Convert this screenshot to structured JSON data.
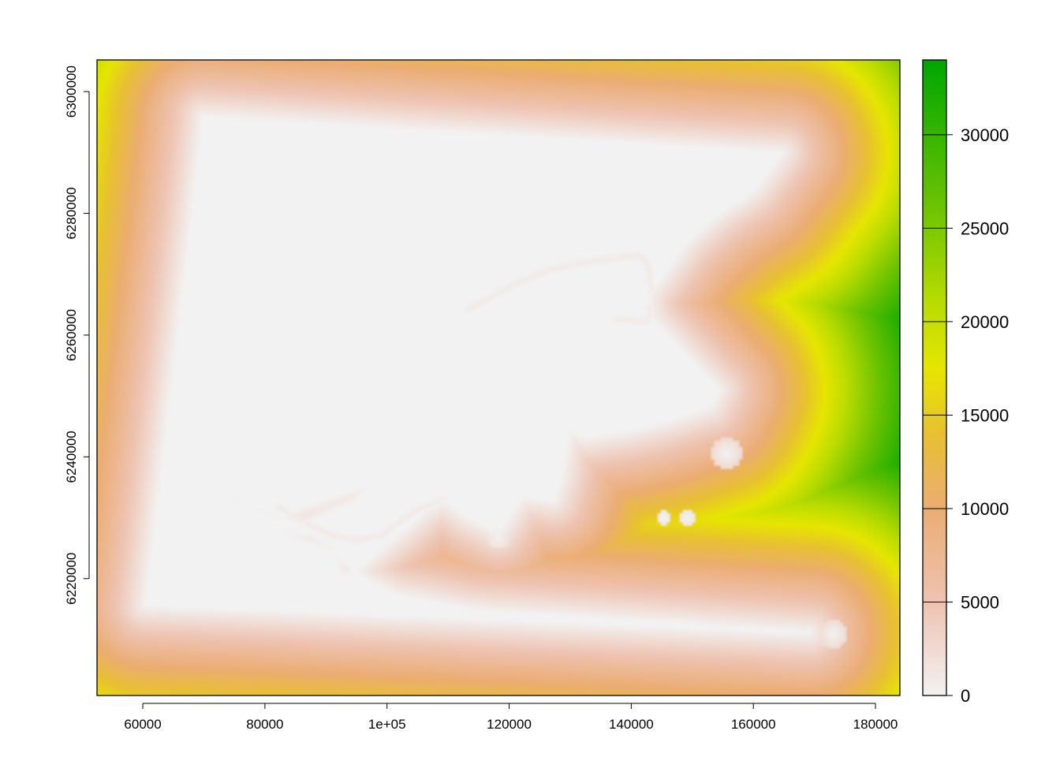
{
  "chart_data": {
    "type": "heatmap",
    "title": "",
    "xlabel": "",
    "ylabel": "",
    "xlim": [
      52500,
      184000
    ],
    "ylim": [
      6200800,
      6305200
    ],
    "x_ticks": [
      60000,
      80000,
      100000,
      120000,
      140000,
      160000,
      180000
    ],
    "x_tick_labels": [
      "60000",
      "80000",
      "1e+05",
      "120000",
      "140000",
      "160000",
      "180000"
    ],
    "y_ticks": [
      6220000,
      6240000,
      6260000,
      6280000,
      6300000
    ],
    "y_tick_labels": [
      "6220000",
      "6240000",
      "6260000",
      "6280000",
      "6300000"
    ],
    "legend": {
      "placement": "right",
      "range": [
        0,
        34000
      ],
      "ticks": [
        0,
        5000,
        10000,
        15000,
        20000,
        25000,
        30000
      ],
      "tick_labels": [
        "0",
        "5000",
        "10000",
        "15000",
        "20000",
        "25000",
        "30000"
      ],
      "color_stops": [
        {
          "value": 0,
          "color": "#f2f2f2"
        },
        {
          "value": 5000,
          "color": "#eec3b1"
        },
        {
          "value": 10000,
          "color": "#ebad73"
        },
        {
          "value": 14000,
          "color": "#e8c032"
        },
        {
          "value": 17500,
          "color": "#e6e600"
        },
        {
          "value": 21000,
          "color": "#b9dc00"
        },
        {
          "value": 26000,
          "color": "#6ec400"
        },
        {
          "value": 34000,
          "color": "#00a600"
        }
      ]
    },
    "grid": false,
    "field_description": "distance raster: value 0 inside the main polygon (with islands/inlets), increasing outward toward edges, maximum near the right edge"
  }
}
